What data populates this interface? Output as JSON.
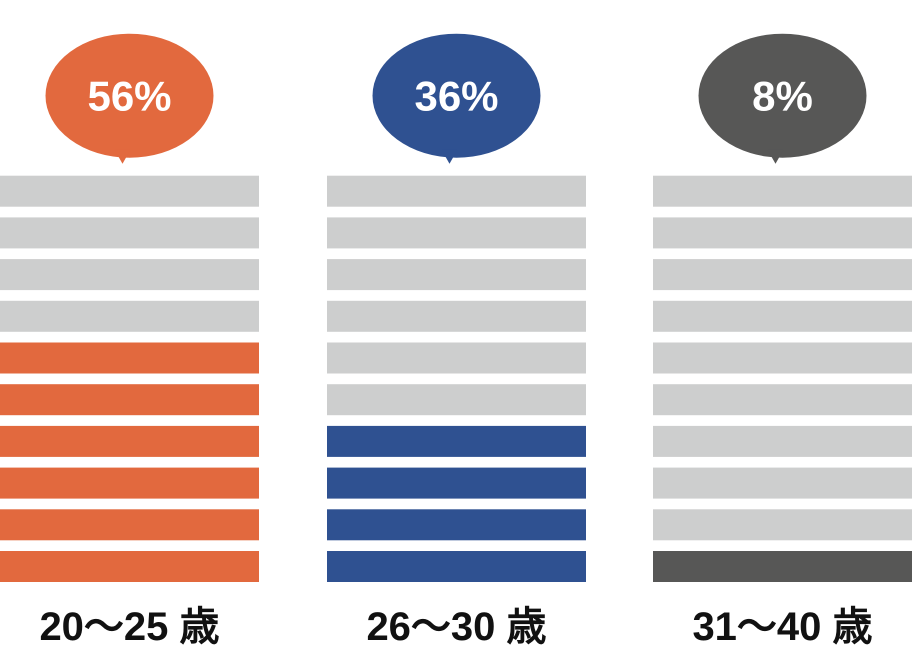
{
  "chart_data": {
    "type": "bar",
    "categories": [
      "20〜25 歳",
      "26〜30 歳",
      "31〜40 歳"
    ],
    "values": [
      56,
      36,
      8
    ],
    "value_labels": [
      "56%",
      "36%",
      "8%"
    ],
    "unit": "%",
    "colors": [
      "#E2693E",
      "#2F5191",
      "#575756"
    ],
    "empty_color": "#CDCECE",
    "segments_per_column": 10
  }
}
